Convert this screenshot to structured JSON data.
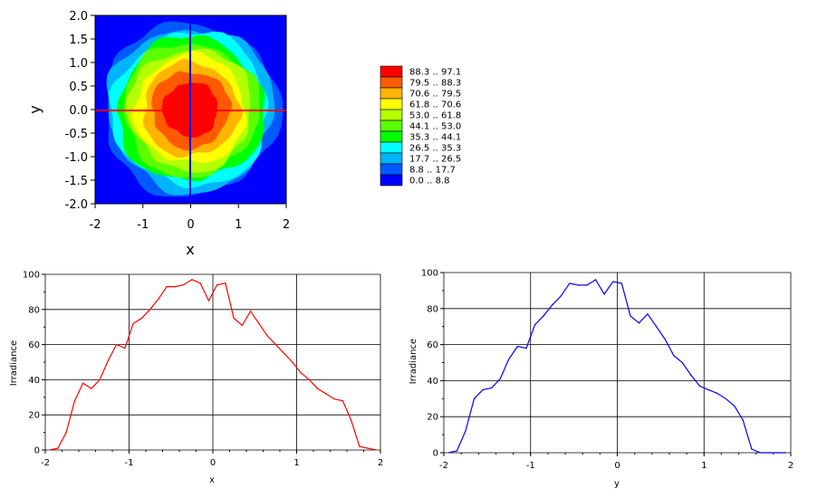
{
  "chart_data": [
    {
      "type": "heatmap",
      "xlabel": "x",
      "ylabel": "y",
      "xlim": [
        -2,
        2
      ],
      "ylim": [
        -2,
        2
      ],
      "xticks": [
        "-2",
        "-1",
        "0",
        "1",
        "2"
      ],
      "yticks": [
        "2.0",
        "1.5",
        "1.0",
        "0.5",
        "0.0",
        "-0.5",
        "-1.0",
        "-1.5",
        "-2.0"
      ],
      "legend_position": "right",
      "legend": [
        {
          "label": "88.3 .. 97.1",
          "color": "#ff0000"
        },
        {
          "label": "79.5 .. 88.3",
          "color": "#ff5a00"
        },
        {
          "label": "70.6 .. 79.5",
          "color": "#ffb400"
        },
        {
          "label": "61.8 .. 70.6",
          "color": "#ffff00"
        },
        {
          "label": "53.0 .. 61.8",
          "color": "#b4ff00"
        },
        {
          "label": "44.1 .. 53.0",
          "color": "#5aff00"
        },
        {
          "label": "35.3 .. 44.1",
          "color": "#00ff00"
        },
        {
          "label": "26.5 .. 35.3",
          "color": "#00ffff"
        },
        {
          "label": "17.7 .. 26.5",
          "color": "#00b4ff"
        },
        {
          "label": "8.8 .. 17.7",
          "color": "#005aff"
        },
        {
          "label": "0.0 .. 8.8",
          "color": "#0000ff"
        }
      ],
      "crosshair_colors": {
        "horizontal": "#ff0000",
        "vertical": "#0000ff"
      }
    },
    {
      "type": "line",
      "xlabel": "x",
      "ylabel": "Irradiance",
      "xlim": [
        -2,
        2
      ],
      "ylim": [
        0,
        100
      ],
      "grid": true,
      "xticks": [
        "-2",
        "-1",
        "0",
        "1",
        "2"
      ],
      "yticks": [
        "0",
        "20",
        "40",
        "60",
        "80",
        "100"
      ],
      "series": [
        {
          "color": "#ff0000",
          "x": [
            -1.95,
            -1.85,
            -1.75,
            -1.65,
            -1.55,
            -1.45,
            -1.35,
            -1.25,
            -1.15,
            -1.05,
            -0.95,
            -0.85,
            -0.75,
            -0.65,
            -0.55,
            -0.45,
            -0.35,
            -0.25,
            -0.15,
            -0.05,
            0.05,
            0.15,
            0.25,
            0.35,
            0.45,
            0.55,
            0.65,
            0.75,
            0.85,
            0.95,
            1.05,
            1.15,
            1.25,
            1.35,
            1.45,
            1.55,
            1.65,
            1.75,
            1.85,
            1.95
          ],
          "values": [
            0,
            1,
            10,
            28,
            38,
            35,
            40,
            51,
            60,
            58,
            72,
            75,
            80,
            86,
            93,
            93,
            94,
            97,
            95,
            85,
            94,
            95,
            75,
            71,
            79,
            72,
            65,
            60,
            55,
            50,
            44,
            40,
            35,
            32,
            29,
            28,
            17,
            2,
            1,
            0
          ]
        }
      ]
    },
    {
      "type": "line",
      "xlabel": "y",
      "ylabel": "Irradiance",
      "xlim": [
        -2,
        2
      ],
      "ylim": [
        0,
        100
      ],
      "grid": true,
      "xticks": [
        "-2",
        "-1",
        "0",
        "1",
        "2"
      ],
      "yticks": [
        "0",
        "20",
        "40",
        "60",
        "80",
        "100"
      ],
      "series": [
        {
          "color": "#0000ff",
          "x": [
            -1.95,
            -1.85,
            -1.75,
            -1.65,
            -1.55,
            -1.45,
            -1.35,
            -1.25,
            -1.15,
            -1.05,
            -0.95,
            -0.85,
            -0.75,
            -0.65,
            -0.55,
            -0.45,
            -0.35,
            -0.25,
            -0.15,
            -0.05,
            0.05,
            0.15,
            0.25,
            0.35,
            0.45,
            0.55,
            0.65,
            0.75,
            0.85,
            0.95,
            1.05,
            1.15,
            1.25,
            1.35,
            1.45,
            1.55,
            1.65,
            1.75,
            1.85,
            1.95
          ],
          "values": [
            0,
            1,
            12,
            30,
            35,
            36,
            41,
            52,
            59,
            58,
            71,
            76,
            82,
            87,
            94,
            93,
            93,
            96,
            88,
            95,
            94,
            76,
            72,
            77,
            70,
            63,
            54,
            50,
            43,
            37,
            35,
            33,
            30,
            26,
            18,
            2,
            0,
            0,
            0,
            0
          ]
        }
      ]
    }
  ]
}
